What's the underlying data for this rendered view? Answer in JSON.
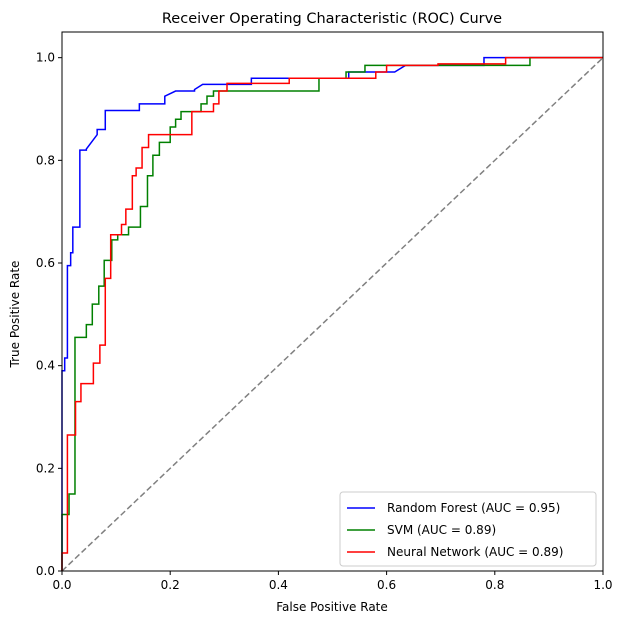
{
  "chart_data": {
    "type": "line",
    "title": "Receiver Operating Characteristic (ROC) Curve",
    "xlabel": "False Positive Rate",
    "ylabel": "True Positive Rate",
    "xlim": [
      0.0,
      1.0
    ],
    "ylim": [
      0.0,
      1.05
    ],
    "x_ticks": [
      "0.0",
      "0.2",
      "0.4",
      "0.6",
      "0.8",
      "1.0"
    ],
    "y_ticks": [
      "0.0",
      "0.2",
      "0.4",
      "0.6",
      "0.8",
      "1.0"
    ],
    "grid": false,
    "legend_position": "lower-right",
    "series": [
      {
        "name": "Random Forest (AUC = 0.95)",
        "color": "#0000ff",
        "points": [
          [
            0.0,
            0.0
          ],
          [
            0.0,
            0.39
          ],
          [
            0.005,
            0.39
          ],
          [
            0.005,
            0.415
          ],
          [
            0.01,
            0.415
          ],
          [
            0.01,
            0.595
          ],
          [
            0.016,
            0.595
          ],
          [
            0.016,
            0.62
          ],
          [
            0.02,
            0.62
          ],
          [
            0.02,
            0.67
          ],
          [
            0.033,
            0.67
          ],
          [
            0.033,
            0.82
          ],
          [
            0.045,
            0.82
          ],
          [
            0.045,
            0.822
          ],
          [
            0.065,
            0.85
          ],
          [
            0.065,
            0.86
          ],
          [
            0.08,
            0.86
          ],
          [
            0.08,
            0.897
          ],
          [
            0.143,
            0.897
          ],
          [
            0.143,
            0.91
          ],
          [
            0.19,
            0.91
          ],
          [
            0.19,
            0.925
          ],
          [
            0.21,
            0.935
          ],
          [
            0.245,
            0.935
          ],
          [
            0.245,
            0.938
          ],
          [
            0.26,
            0.948
          ],
          [
            0.35,
            0.948
          ],
          [
            0.35,
            0.96
          ],
          [
            0.53,
            0.96
          ],
          [
            0.53,
            0.972
          ],
          [
            0.615,
            0.972
          ],
          [
            0.635,
            0.985
          ],
          [
            0.78,
            0.985
          ],
          [
            0.78,
            1.0
          ],
          [
            1.0,
            1.0
          ]
        ]
      },
      {
        "name": "SVM (AUC = 0.89)",
        "color": "#008000",
        "points": [
          [
            0.0,
            0.0
          ],
          [
            0.0,
            0.11
          ],
          [
            0.013,
            0.11
          ],
          [
            0.013,
            0.15
          ],
          [
            0.024,
            0.15
          ],
          [
            0.024,
            0.455
          ],
          [
            0.045,
            0.455
          ],
          [
            0.045,
            0.48
          ],
          [
            0.056,
            0.48
          ],
          [
            0.056,
            0.52
          ],
          [
            0.068,
            0.52
          ],
          [
            0.068,
            0.555
          ],
          [
            0.078,
            0.555
          ],
          [
            0.078,
            0.605
          ],
          [
            0.092,
            0.605
          ],
          [
            0.092,
            0.645
          ],
          [
            0.103,
            0.645
          ],
          [
            0.103,
            0.655
          ],
          [
            0.123,
            0.655
          ],
          [
            0.123,
            0.67
          ],
          [
            0.145,
            0.67
          ],
          [
            0.145,
            0.71
          ],
          [
            0.158,
            0.71
          ],
          [
            0.158,
            0.77
          ],
          [
            0.168,
            0.77
          ],
          [
            0.168,
            0.81
          ],
          [
            0.18,
            0.81
          ],
          [
            0.18,
            0.835
          ],
          [
            0.2,
            0.835
          ],
          [
            0.2,
            0.865
          ],
          [
            0.21,
            0.865
          ],
          [
            0.21,
            0.88
          ],
          [
            0.22,
            0.88
          ],
          [
            0.22,
            0.895
          ],
          [
            0.257,
            0.895
          ],
          [
            0.257,
            0.91
          ],
          [
            0.268,
            0.91
          ],
          [
            0.268,
            0.925
          ],
          [
            0.28,
            0.925
          ],
          [
            0.28,
            0.935
          ],
          [
            0.475,
            0.935
          ],
          [
            0.475,
            0.96
          ],
          [
            0.525,
            0.96
          ],
          [
            0.525,
            0.972
          ],
          [
            0.56,
            0.972
          ],
          [
            0.56,
            0.985
          ],
          [
            0.865,
            0.985
          ],
          [
            0.865,
            1.0
          ],
          [
            1.0,
            1.0
          ]
        ]
      },
      {
        "name": "Neural Network (AUC = 0.89)",
        "color": "#ff0000",
        "points": [
          [
            0.0,
            0.0
          ],
          [
            0.0,
            0.035
          ],
          [
            0.01,
            0.035
          ],
          [
            0.01,
            0.265
          ],
          [
            0.025,
            0.265
          ],
          [
            0.025,
            0.33
          ],
          [
            0.035,
            0.33
          ],
          [
            0.035,
            0.365
          ],
          [
            0.058,
            0.365
          ],
          [
            0.058,
            0.405
          ],
          [
            0.07,
            0.405
          ],
          [
            0.07,
            0.44
          ],
          [
            0.08,
            0.44
          ],
          [
            0.08,
            0.57
          ],
          [
            0.09,
            0.57
          ],
          [
            0.09,
            0.655
          ],
          [
            0.11,
            0.655
          ],
          [
            0.11,
            0.675
          ],
          [
            0.118,
            0.675
          ],
          [
            0.118,
            0.705
          ],
          [
            0.13,
            0.705
          ],
          [
            0.13,
            0.77
          ],
          [
            0.137,
            0.77
          ],
          [
            0.137,
            0.785
          ],
          [
            0.148,
            0.785
          ],
          [
            0.148,
            0.825
          ],
          [
            0.16,
            0.825
          ],
          [
            0.16,
            0.85
          ],
          [
            0.24,
            0.85
          ],
          [
            0.24,
            0.895
          ],
          [
            0.28,
            0.895
          ],
          [
            0.28,
            0.91
          ],
          [
            0.29,
            0.91
          ],
          [
            0.29,
            0.935
          ],
          [
            0.305,
            0.935
          ],
          [
            0.305,
            0.95
          ],
          [
            0.42,
            0.95
          ],
          [
            0.42,
            0.96
          ],
          [
            0.58,
            0.96
          ],
          [
            0.58,
            0.972
          ],
          [
            0.6,
            0.972
          ],
          [
            0.6,
            0.985
          ],
          [
            0.695,
            0.985
          ],
          [
            0.695,
            0.988
          ],
          [
            0.82,
            0.988
          ],
          [
            0.82,
            1.0
          ],
          [
            1.0,
            1.0
          ]
        ]
      },
      {
        "name": "",
        "color": "#808080",
        "dashed": true,
        "points": [
          [
            0.0,
            0.0
          ],
          [
            1.0,
            1.0
          ]
        ]
      }
    ]
  }
}
